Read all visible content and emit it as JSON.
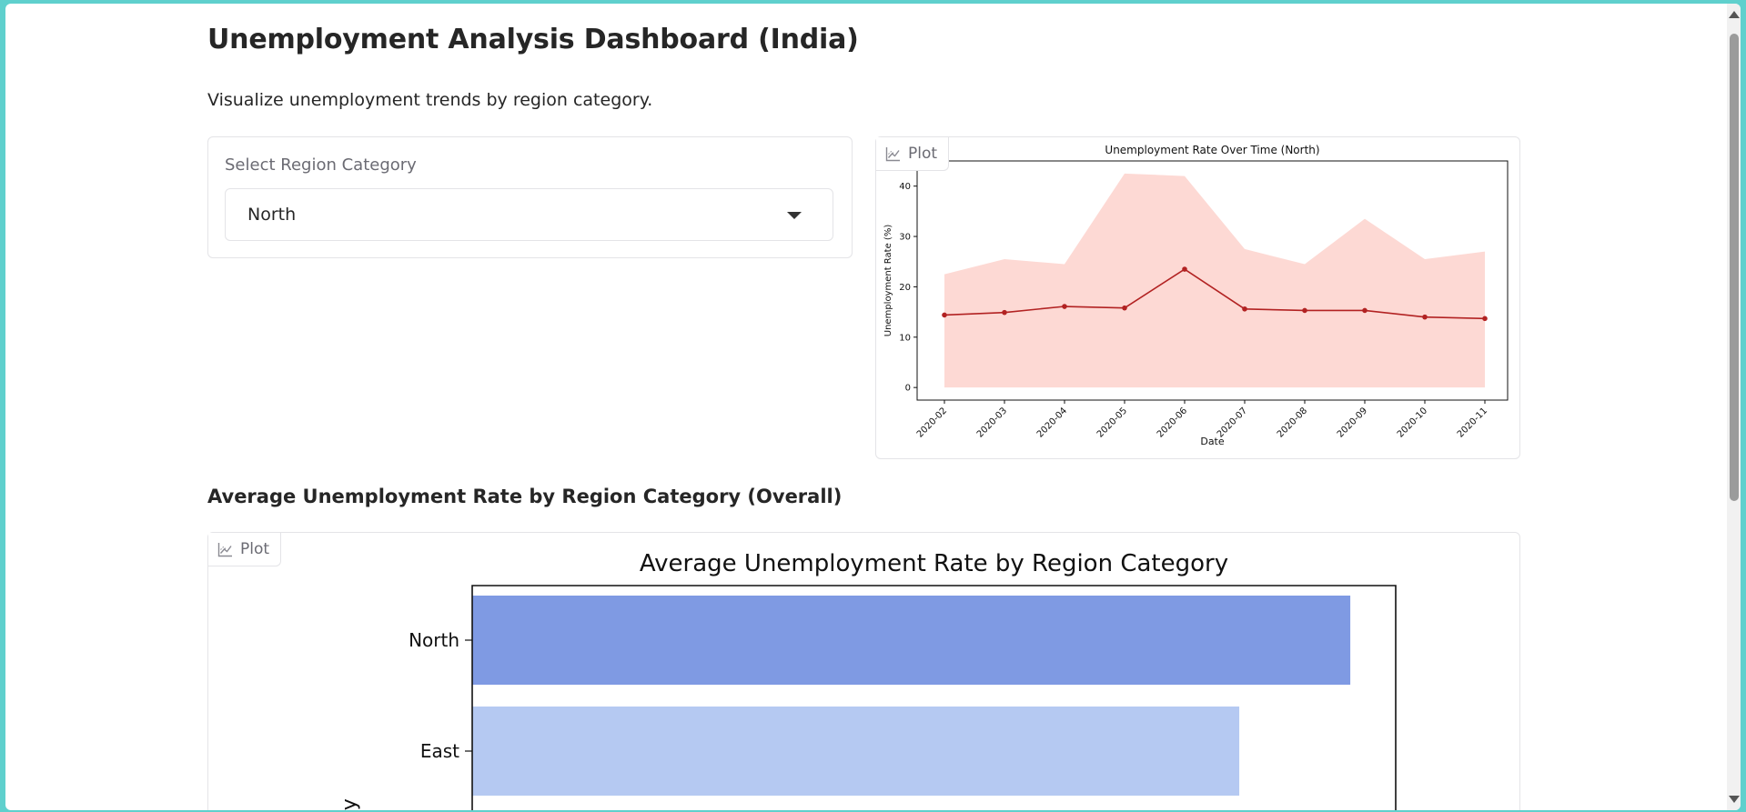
{
  "page": {
    "title": "Unemployment Analysis Dashboard (India)",
    "subtitle": "Visualize unemployment trends by region category."
  },
  "region_select": {
    "label": "Select Region Category",
    "value": "North"
  },
  "plot_tag_label": "Plot",
  "icons": {
    "plot": "chart-line-icon",
    "dropdown": "chevron-down-icon"
  },
  "section": {
    "heading": "Average Unemployment Rate by Region Category (Overall)"
  },
  "colors": {
    "line": "#b22222",
    "fill": "#fdd9d4",
    "bar_north": "#7f9ae3",
    "bar_east": "#b5c9f2"
  },
  "chart_data": [
    {
      "type": "line",
      "title": "Unemployment Rate Over Time (North)",
      "xlabel": "Date",
      "ylabel": "Unemployment Rate (%)",
      "x": [
        "2020-02",
        "2020-03",
        "2020-04",
        "2020-05",
        "2020-06",
        "2020-07",
        "2020-08",
        "2020-09",
        "2020-10",
        "2020-11"
      ],
      "series": [
        {
          "values": [
            14.4,
            14.9,
            16.1,
            15.8,
            23.5,
            15.6,
            15.3,
            15.3,
            14.0,
            13.7
          ]
        }
      ],
      "band_upper": [
        22.5,
        25.5,
        24.5,
        42.5,
        42.0,
        27.5,
        24.5,
        33.5,
        25.5,
        27.0
      ],
      "band_lower": [
        0,
        0,
        0,
        0,
        0,
        0,
        0,
        0,
        0,
        0
      ],
      "yticks": [
        0,
        10,
        20,
        30,
        40
      ],
      "ylim": [
        -2.5,
        45
      ],
      "grid": false
    },
    {
      "type": "bar",
      "orientation": "horizontal",
      "title": "Average Unemployment Rate by Region Category",
      "ylabel": "ory",
      "categories": [
        "North",
        "East"
      ],
      "values": [
        17.4,
        15.2
      ],
      "xlim": [
        0,
        18.3
      ]
    }
  ]
}
